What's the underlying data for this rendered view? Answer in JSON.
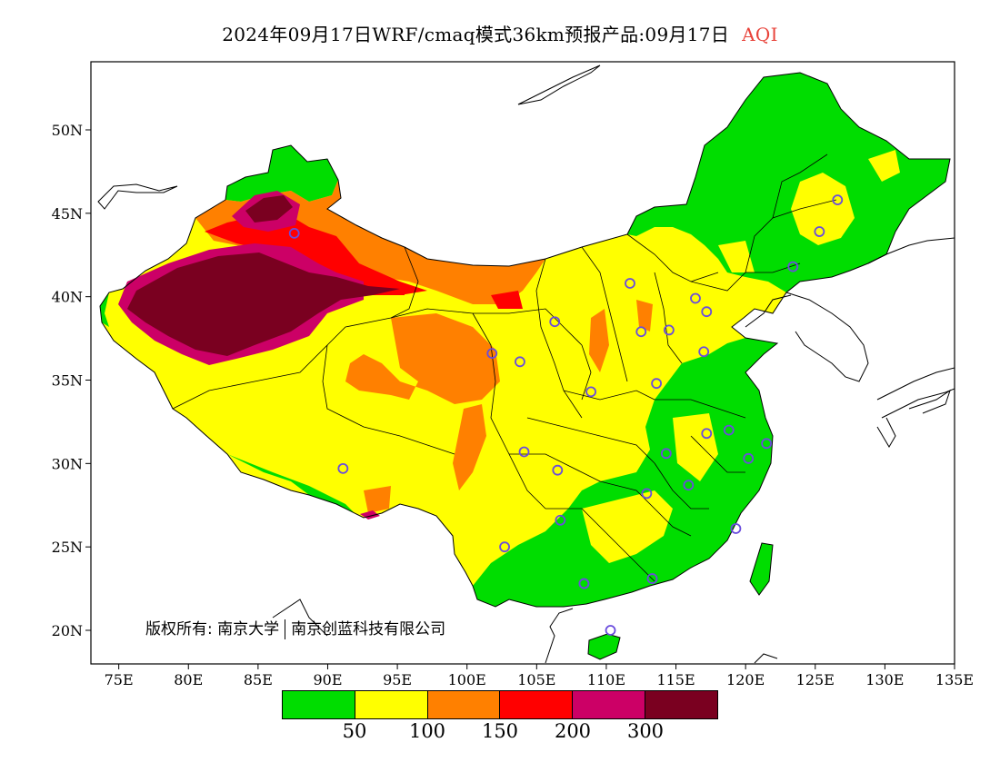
{
  "title": {
    "main": "2024年09月17日WRF/cmaq模式36km预报产品:09月17日",
    "variable": "AQI"
  },
  "colors": {
    "good": "#00dd00",
    "moderate": "#ffff00",
    "usg": "#ff8000",
    "unhealthy": "#ff0000",
    "very_unhealthy": "#cc0066",
    "hazardous": "#7a0020",
    "station_marker": "#6a4cdd"
  },
  "map_extent": {
    "lon": [
      73,
      135
    ],
    "lat": [
      18,
      54
    ]
  },
  "x_ticks": [
    "75E",
    "80E",
    "85E",
    "90E",
    "95E",
    "100E",
    "105E",
    "110E",
    "115E",
    "120E",
    "125E",
    "130E",
    "135E"
  ],
  "y_ticks": [
    "20N",
    "25N",
    "30N",
    "35N",
    "40N",
    "45N",
    "50N"
  ],
  "legend": {
    "bins": [
      {
        "name": "0-50",
        "color": "#00dd00"
      },
      {
        "name": "50-100",
        "color": "#ffff00"
      },
      {
        "name": "100-150",
        "color": "#ff8000"
      },
      {
        "name": "150-200",
        "color": "#ff0000"
      },
      {
        "name": "200-300",
        "color": "#cc0066"
      },
      {
        "name": ">300",
        "color": "#7a0020"
      }
    ],
    "labels": [
      "50",
      "100",
      "150",
      "200",
      "300"
    ]
  },
  "copyright": {
    "prefix": "版权所有:",
    "org1": "南京大学",
    "org2": "南京创蓝科技有限公司"
  },
  "stations": [
    [
      87.6,
      43.8
    ],
    [
      91.1,
      29.7
    ],
    [
      101.8,
      36.6
    ],
    [
      103.8,
      36.1
    ],
    [
      106.3,
      38.5
    ],
    [
      104.1,
      30.7
    ],
    [
      106.5,
      29.6
    ],
    [
      106.7,
      26.6
    ],
    [
      102.7,
      25.0
    ],
    [
      108.4,
      22.8
    ],
    [
      110.3,
      20.0
    ],
    [
      113.3,
      23.1
    ],
    [
      112.9,
      28.2
    ],
    [
      114.3,
      30.6
    ],
    [
      115.9,
      28.7
    ],
    [
      119.3,
      26.1
    ],
    [
      120.2,
      30.3
    ],
    [
      121.5,
      31.2
    ],
    [
      118.8,
      32.0
    ],
    [
      117.2,
      31.8
    ],
    [
      113.6,
      34.8
    ],
    [
      117.0,
      36.7
    ],
    [
      114.5,
      38.0
    ],
    [
      112.5,
      37.9
    ],
    [
      111.7,
      40.8
    ],
    [
      116.4,
      39.9
    ],
    [
      117.2,
      39.1
    ],
    [
      123.4,
      41.8
    ],
    [
      125.3,
      43.9
    ],
    [
      126.6,
      45.8
    ],
    [
      108.9,
      34.3
    ],
    [
      108.4,
      22.8
    ]
  ]
}
